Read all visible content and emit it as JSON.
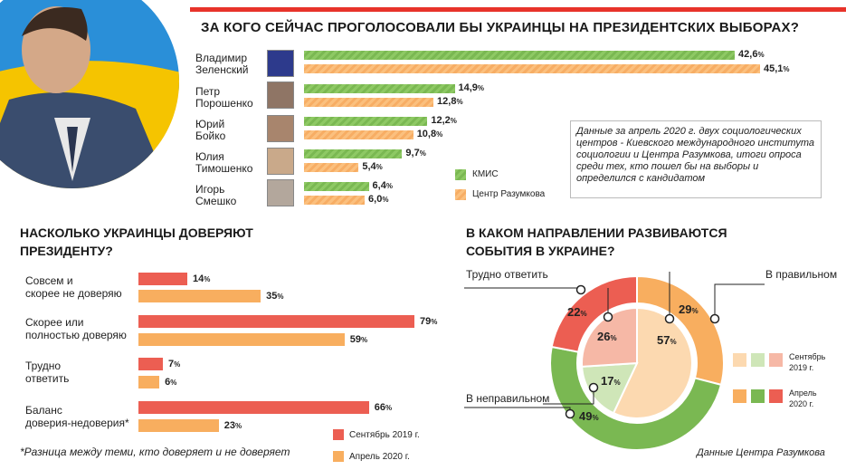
{
  "top_chart": {
    "title": "ЗА КОГО СЕЙЧАС ПРОГОЛОСОВАЛИ БЫ УКРАИНЦЫ НА ПРЕЗИДЕНТСКИХ ВЫБОРАХ?",
    "note": "Данные за апрель 2020 г. двух социологических центров - Киевского международного института социологии и Центра Разумкова, итоги опроса среди тех, кто пошел бы на выборы и определился с кандидатом",
    "legend": [
      {
        "label": "КМИС",
        "color": "#7ab852"
      },
      {
        "label": "Центр Разумкова",
        "color": "#f7ad64"
      }
    ]
  },
  "trust_chart": {
    "title_line1": "НАСКОЛЬКО УКРАИНЦЫ ДОВЕРЯЮТ",
    "title_line2": "ПРЕЗИДЕНТУ?",
    "footnote": "*Разница между теми, кто доверяет и не доверяет",
    "legend": [
      {
        "label": "Сентябрь 2019 г.",
        "color": "#ec5e52"
      },
      {
        "label": "Апрель 2020 г.",
        "color": "#f8ae5f"
      }
    ]
  },
  "direction_chart": {
    "title_line1": "В КАКОМ НАПРАВЛЕНИИ РАЗВИВАЮТСЯ",
    "title_line2": "СОБЫТИЯ В УКРАИНЕ?",
    "source": "Данные Центра Разумкова",
    "legend": [
      {
        "label_line1": "Сентябрь",
        "label_line2": "2019 г."
      },
      {
        "label_line1": "Апрель",
        "label_line2": "2020 г."
      }
    ]
  },
  "chart_data": [
    {
      "type": "bar",
      "orientation": "horizontal",
      "title": "ЗА КОГО СЕЙЧАС ПРОГОЛОСОВАЛИ БЫ УКРАИНЦЫ НА ПРЕЗИДЕНТСКИХ ВЫБОРАХ?",
      "categories": [
        {
          "line1": "Владимир",
          "line2": "Зеленский"
        },
        {
          "line1": "Петр",
          "line2": "Порошенко"
        },
        {
          "line1": "Юрий",
          "line2": "Бойко"
        },
        {
          "line1": "Юлия",
          "line2": "Тимошенко"
        },
        {
          "line1": "Игорь",
          "line2": "Смешко"
        }
      ],
      "series": [
        {
          "name": "КМИС",
          "color": "#7ab852",
          "values": [
            42.6,
            14.9,
            12.2,
            9.7,
            6.4
          ],
          "labels": [
            "42,6",
            "14,9",
            "12,2",
            "9,7",
            "6,4"
          ]
        },
        {
          "name": "Центр Разумкова",
          "color": "#f7ad64",
          "values": [
            45.1,
            12.8,
            10.8,
            5.4,
            6.0
          ],
          "labels": [
            "45,1",
            "12,8",
            "10,8",
            "5,4",
            "6,0"
          ]
        }
      ],
      "unit": "%",
      "xlim": [
        0,
        45.1
      ]
    },
    {
      "type": "bar",
      "orientation": "horizontal",
      "title": "НАСКОЛЬКО УКРАИНЦЫ ДОВЕРЯЮТ ПРЕЗИДЕНТУ?",
      "categories": [
        {
          "line1": "Совсем и",
          "line2": "скорее не доверяю"
        },
        {
          "line1": "Скорее или",
          "line2": "полностью доверяю"
        },
        {
          "line1": "Трудно",
          "line2": "ответить"
        },
        {
          "line1": "Баланс",
          "line2": "доверия-недоверия*"
        }
      ],
      "series": [
        {
          "name": "Сентябрь 2019 г.",
          "color": "#ec5e52",
          "values": [
            14,
            79,
            7,
            66
          ]
        },
        {
          "name": "Апрель 2020 г.",
          "color": "#f8ae5f",
          "values": [
            35,
            59,
            6,
            23
          ]
        }
      ],
      "unit": "%",
      "xlim": [
        0,
        79
      ]
    },
    {
      "type": "pie",
      "variant": "nested-donut",
      "title": "В КАКОМ НАПРАВЛЕНИИ РАЗВИВАЮТСЯ СОБЫТИЯ В УКРАИНЕ?",
      "categories": [
        "В правильном",
        "В неправильном",
        "Трудно ответить"
      ],
      "series": [
        {
          "name": "Сентябрь 2019 г.",
          "ring": "inner",
          "values": [
            57,
            17,
            26
          ],
          "colors": [
            "#fcd9b0",
            "#cfe6b8",
            "#f6b8a6"
          ]
        },
        {
          "name": "Апрель 2020 г.",
          "ring": "outer",
          "values": [
            29,
            49,
            22
          ],
          "colors": [
            "#f8ae5f",
            "#7ab852",
            "#ec5e52"
          ]
        }
      ],
      "unit": "%"
    }
  ]
}
